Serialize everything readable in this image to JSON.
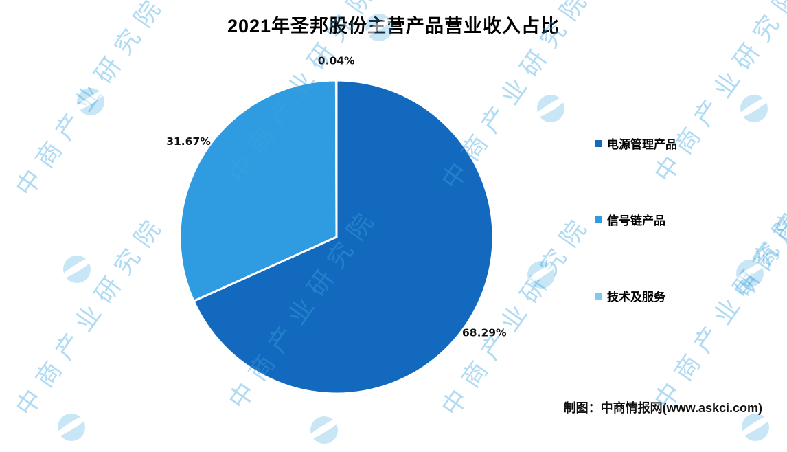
{
  "title": "2021年圣邦股份主营产品营业收入占比",
  "credit": "制图：中商情报网(www.askci.com)",
  "watermark": {
    "text": "中商产业研究院"
  },
  "chart_data": {
    "type": "pie",
    "title": "2021年圣邦股份主营产品营业收入占比",
    "direction": "clockwise",
    "start_angle_deg": 0,
    "legend_position": "right",
    "total_percent": 100,
    "series": [
      {
        "name": "电源管理产品",
        "value": 68.29,
        "label": "68.29%",
        "color": "#1269bd"
      },
      {
        "name": "信号链产品",
        "value": 31.67,
        "label": "31.67%",
        "color": "#2f9be0"
      },
      {
        "name": "技术及服务",
        "value": 0.04,
        "label": "0.04%",
        "color": "#7ecbf2"
      }
    ]
  }
}
